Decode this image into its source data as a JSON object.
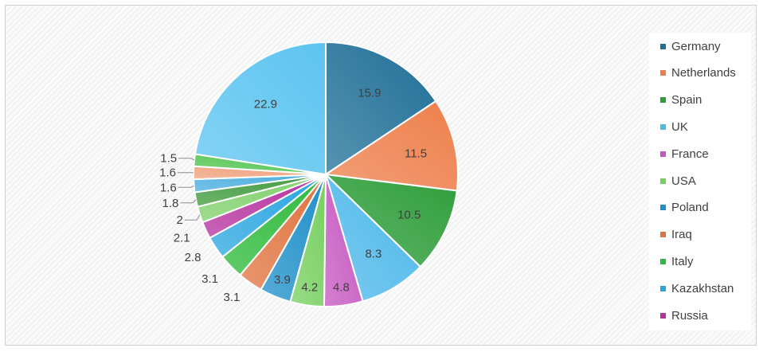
{
  "chart_data": {
    "type": "pie",
    "title": "",
    "legend_position": "right",
    "slices": [
      {
        "label": "Germany",
        "value": 15.9,
        "color": "#1f6f97"
      },
      {
        "label": "Netherlands",
        "value": 11.5,
        "color": "#ee7f4b"
      },
      {
        "label": "Spain",
        "value": 10.5,
        "color": "#2e9e3a"
      },
      {
        "label": "UK",
        "value": 8.3,
        "color": "#4db8ea"
      },
      {
        "label": "France",
        "value": 4.8,
        "color": "#c556c0"
      },
      {
        "label": "USA",
        "value": 4.2,
        "color": "#77cf60"
      },
      {
        "label": "Poland",
        "value": 3.9,
        "color": "#1f8fc9"
      },
      {
        "label": "Iraq",
        "value": 3.1,
        "color": "#e0733f"
      },
      {
        "label": "Italy",
        "value": 3.1,
        "color": "#2dba3a"
      },
      {
        "label": "Kazakhstan",
        "value": 2.8,
        "color": "#2aa5e0"
      },
      {
        "label": "Russia",
        "value": 2.1,
        "color": "#b6329f"
      },
      {
        "label": "",
        "value": 2,
        "color": "#7fd06a"
      },
      {
        "label": "",
        "value": 1.8,
        "color": "#3f9a3b"
      },
      {
        "label": "",
        "value": 1.6,
        "color": "#4aaddf"
      },
      {
        "label": "",
        "value": 1.6,
        "color": "#f0a07c"
      },
      {
        "label": "",
        "value": 1.5,
        "color": "#52c44f"
      },
      {
        "label": "",
        "value": 22.9,
        "color": "#5cc4f0"
      }
    ]
  }
}
